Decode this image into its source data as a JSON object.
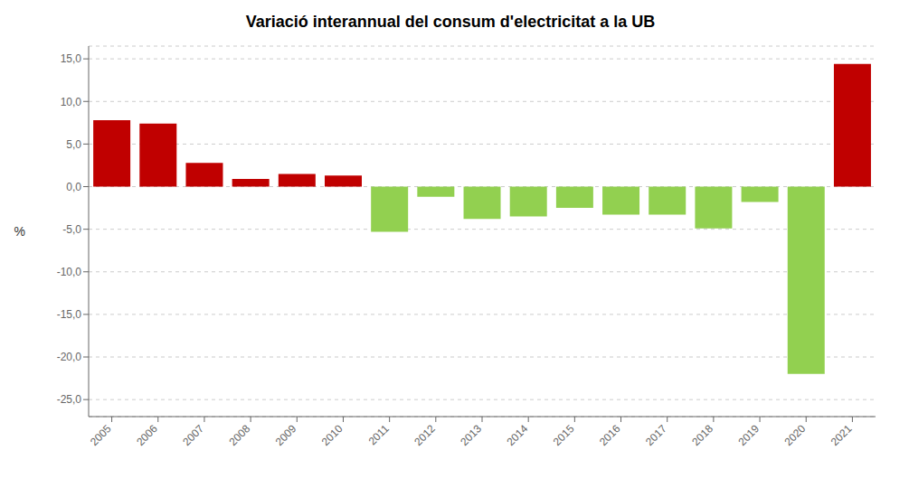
{
  "chart_data": {
    "type": "bar",
    "title": "Variació interannual del consum d'electricitat a la UB",
    "ylabel": "%",
    "categories": [
      "2005",
      "2006",
      "2007",
      "2008",
      "2009",
      "2010",
      "2011",
      "2012",
      "2013",
      "2014",
      "2015",
      "2016",
      "2017",
      "2018",
      "2019",
      "2020",
      "2021"
    ],
    "values": [
      7.8,
      7.4,
      2.8,
      0.9,
      1.5,
      1.3,
      -5.3,
      -1.2,
      -3.8,
      -3.5,
      -2.5,
      -3.3,
      -3.3,
      -4.9,
      -1.8,
      -22.0,
      14.4
    ],
    "colors": [
      "#c00000",
      "#c00000",
      "#c00000",
      "#c00000",
      "#c00000",
      "#c00000",
      "#92d050",
      "#92d050",
      "#92d050",
      "#92d050",
      "#92d050",
      "#92d050",
      "#92d050",
      "#92d050",
      "#92d050",
      "#92d050",
      "#c00000"
    ],
    "ylim": [
      -27,
      16.5
    ],
    "yticks": [
      {
        "value": -25.0,
        "label": "-25,0"
      },
      {
        "value": -20.0,
        "label": "-20,0"
      },
      {
        "value": -15.0,
        "label": "-15,0"
      },
      {
        "value": -10.0,
        "label": "-10,0"
      },
      {
        "value": -5.0,
        "label": "-5,0"
      },
      {
        "value": 0.0,
        "label": "0,0"
      },
      {
        "value": 5.0,
        "label": "5,0"
      },
      {
        "value": 10.0,
        "label": "10,0"
      },
      {
        "value": 15.0,
        "label": "15,0"
      }
    ],
    "grid": true
  }
}
